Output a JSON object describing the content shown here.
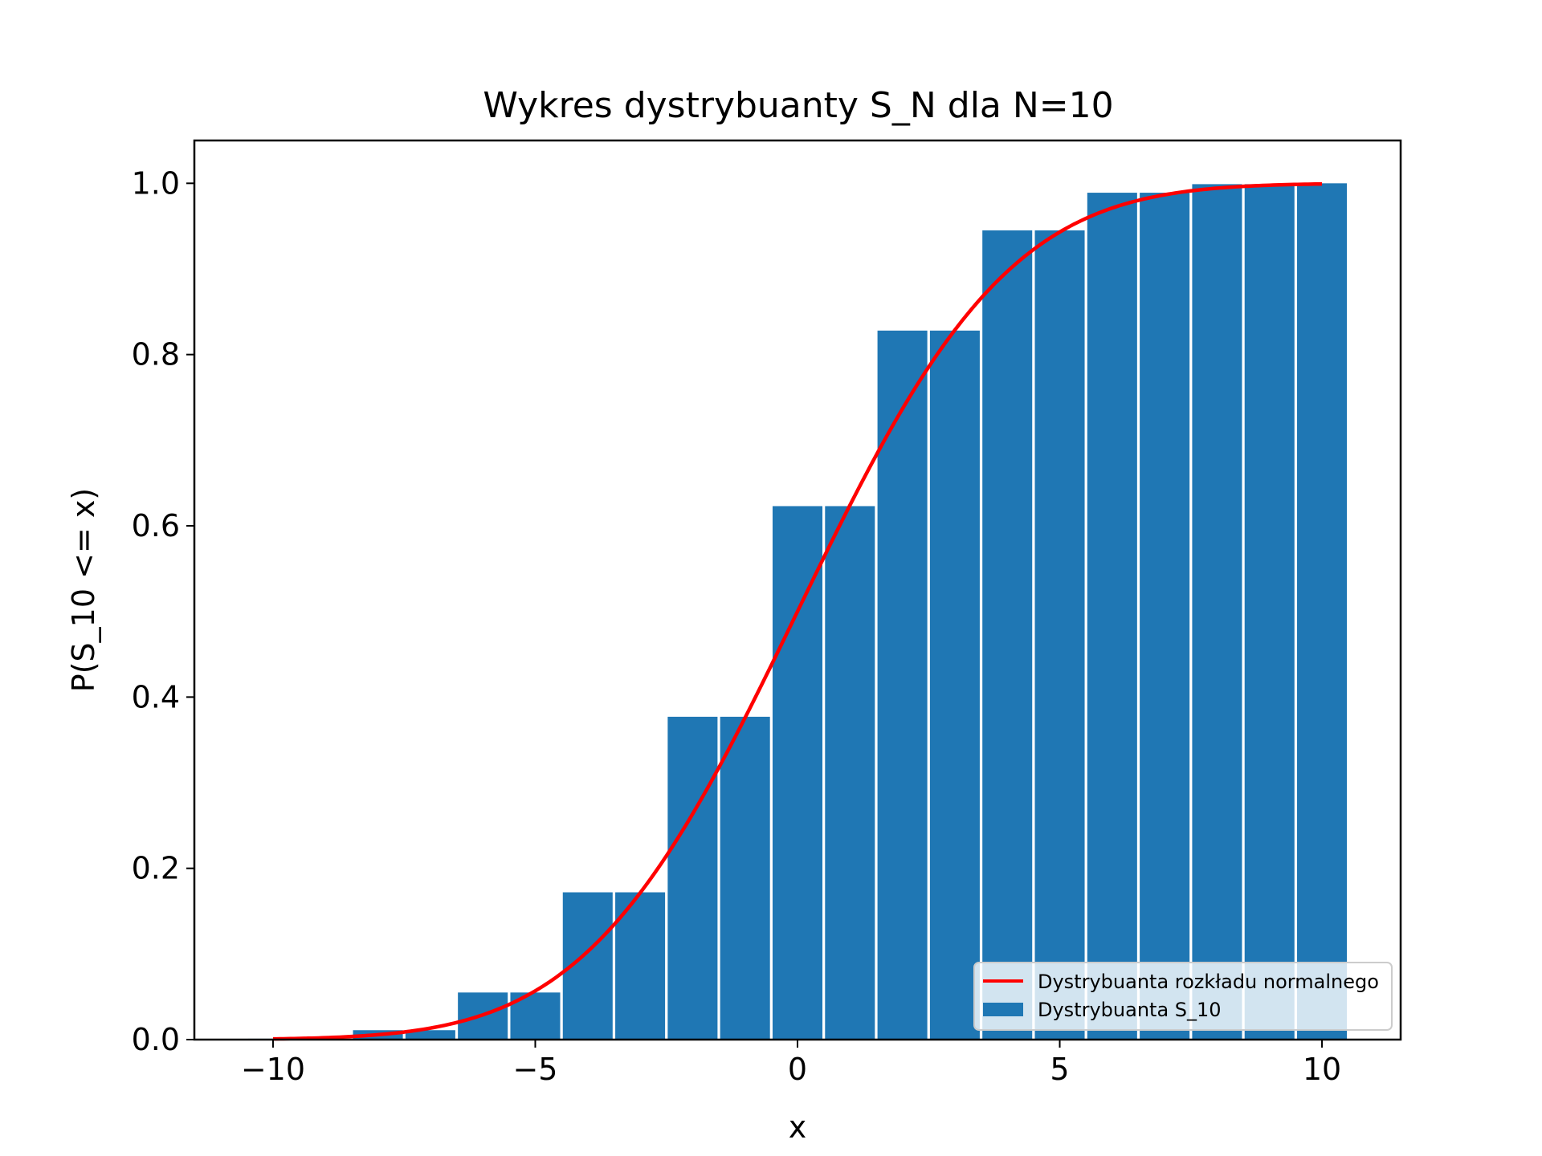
{
  "chart_data": {
    "type": "bar",
    "title": "Wykres dystrybuanty S_N dla N=10",
    "xlabel": "x",
    "ylabel": "P(S_10 <= x)",
    "xlim": [
      -11.5,
      11.5
    ],
    "ylim": [
      0.0,
      1.05
    ],
    "xticks": [
      -10,
      -5,
      0,
      5,
      10
    ],
    "xtick_labels": [
      "−10",
      "−5",
      "0",
      "5",
      "10"
    ],
    "yticks": [
      0.0,
      0.2,
      0.4,
      0.6,
      0.8,
      1.0
    ],
    "ytick_labels": [
      "0.0",
      "0.2",
      "0.4",
      "0.6",
      "0.8",
      "1.0"
    ],
    "grid": false,
    "legend_position": "lower-right",
    "bar_width": 0.95,
    "colors": {
      "bars": "#1f77b4",
      "curve": "#ff0000",
      "axes": "#000000"
    },
    "series": [
      {
        "name": "Dystrybuanta S_10",
        "kind": "bar",
        "x": [
          -10,
          -9,
          -8,
          -7,
          -6,
          -5,
          -4,
          -3,
          -2,
          -1,
          0,
          1,
          2,
          3,
          4,
          5,
          6,
          7,
          8,
          9,
          10
        ],
        "values": [
          0.001,
          0.001,
          0.011,
          0.011,
          0.055,
          0.055,
          0.172,
          0.172,
          0.377,
          0.377,
          0.623,
          0.623,
          0.828,
          0.828,
          0.945,
          0.945,
          0.989,
          0.989,
          0.999,
          0.999,
          1.0
        ]
      },
      {
        "name": "Dystrybuanta rozkładu normalnego",
        "kind": "line",
        "distribution": "normal",
        "mean": 0,
        "std": 3.162,
        "x_range": [
          -10,
          10
        ]
      }
    ]
  }
}
